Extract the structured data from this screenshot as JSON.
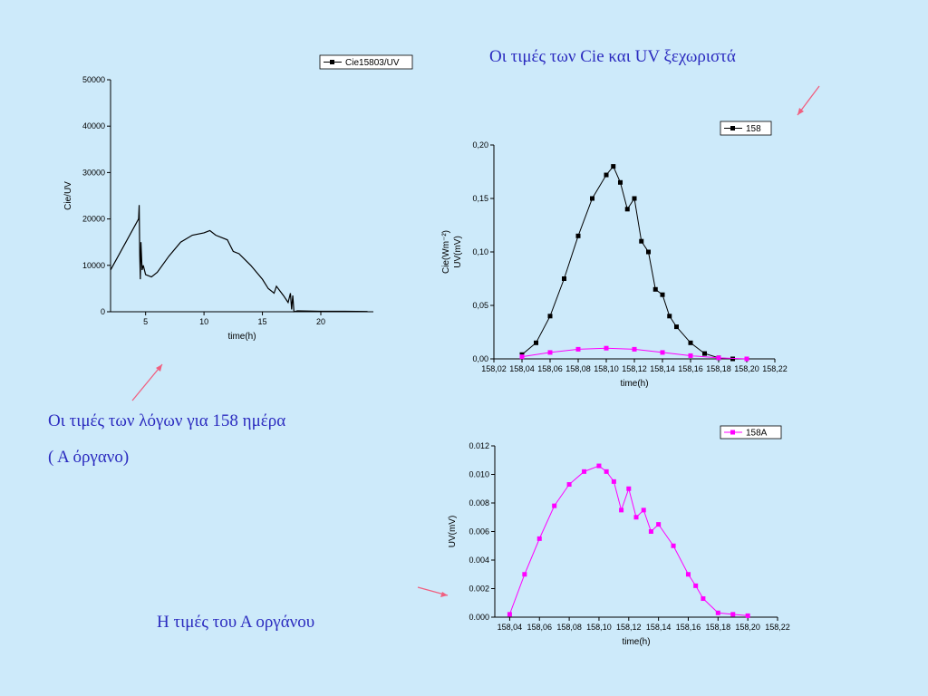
{
  "captions": {
    "top_right": "Οι τιμές των Cie και UV ξεχωριστά",
    "left_1": "Οι τιμές των λόγων για 158 ημέρα",
    "left_2": "( Α όργανο)",
    "bottom": "Η τιμές του Α οργάνου"
  },
  "colors": {
    "background": "#cdeafa",
    "caption": "#2b2bbf",
    "arrow": "#f06080",
    "magenta": "#ff00ff",
    "black": "#000000"
  },
  "chart_data": [
    {
      "id": "ratio",
      "type": "line",
      "legend": "Cie15803/UV",
      "xlabel": "time(h)",
      "ylabel": "Cie/UV",
      "xlim": [
        2,
        24.5
      ],
      "ylim": [
        0,
        50000
      ],
      "xticks": [
        "5",
        "10",
        "15",
        "20"
      ],
      "yticks": [
        "0",
        "10000",
        "20000",
        "30000",
        "40000",
        "50000"
      ],
      "series": [
        {
          "legend_label": "Cie15803/UV",
          "color": "#000000",
          "x": [
            2.0,
            4.4,
            4.45,
            4.5,
            4.55,
            4.6,
            4.7,
            4.8,
            5.0,
            5.5,
            6.0,
            7.0,
            8.0,
            9.0,
            10.0,
            10.5,
            11.0,
            12.0,
            12.5,
            13.0,
            14.0,
            15.0,
            15.5,
            16.0,
            16.2,
            16.8,
            17.2,
            17.4,
            17.5,
            17.6,
            17.7,
            18.0,
            20.0,
            22.0,
            24.0
          ],
          "y": [
            9000,
            20000,
            23000,
            12000,
            7000,
            15000,
            9000,
            10000,
            8000,
            7500,
            8500,
            12000,
            15000,
            16500,
            17000,
            17500,
            16500,
            15500,
            13000,
            12500,
            10000,
            7000,
            5000,
            4000,
            5500,
            3500,
            2000,
            4000,
            500,
            3500,
            0,
            200,
            100,
            100,
            50
          ]
        }
      ]
    },
    {
      "id": "cie_uv",
      "type": "scatter",
      "legend": "158",
      "xlabel": "time(h)",
      "ylabel": "Cie(Wm⁻²)\nUV(mV)",
      "xlim": [
        158.02,
        158.22
      ],
      "ylim": [
        0,
        0.2
      ],
      "xticks": [
        "158,02",
        "158,04",
        "158,06",
        "158,08",
        "158,10",
        "158,12",
        "158,14",
        "158,16",
        "158,18",
        "158,20",
        "158,22"
      ],
      "yticks": [
        "0,00",
        "0,05",
        "0,10",
        "0,15",
        "0,20"
      ],
      "series": [
        {
          "legend_label": "158",
          "color": "#000000",
          "x": [
            158.04,
            158.05,
            158.06,
            158.07,
            158.08,
            158.09,
            158.1,
            158.105,
            158.11,
            158.115,
            158.12,
            158.125,
            158.13,
            158.135,
            158.14,
            158.145,
            158.15,
            158.16,
            158.17,
            158.18,
            158.19,
            158.2
          ],
          "y": [
            0.004,
            0.015,
            0.04,
            0.075,
            0.115,
            0.15,
            0.172,
            0.18,
            0.165,
            0.14,
            0.15,
            0.11,
            0.1,
            0.065,
            0.06,
            0.04,
            0.03,
            0.015,
            0.005,
            0.001,
            0.0,
            0.0
          ]
        },
        {
          "color": "#ff00ff",
          "x": [
            158.04,
            158.06,
            158.08,
            158.1,
            158.12,
            158.14,
            158.16,
            158.18,
            158.2
          ],
          "y": [
            0.002,
            0.006,
            0.009,
            0.01,
            0.009,
            0.006,
            0.003,
            0.001,
            0.0
          ]
        }
      ]
    },
    {
      "id": "uv_only",
      "type": "scatter",
      "legend": "158A",
      "xlabel": "time(h)",
      "ylabel": "UV(mV)",
      "xlim": [
        158.03,
        158.22
      ],
      "ylim": [
        0,
        0.012
      ],
      "xticks": [
        "158,04",
        "158,06",
        "158,08",
        "158,10",
        "158,12",
        "158,14",
        "158,16",
        "158,18",
        "158,20",
        "158,22"
      ],
      "yticks": [
        "0.000",
        "0.002",
        "0.004",
        "0.006",
        "0.008",
        "0.010",
        "0.012"
      ],
      "series": [
        {
          "legend_label": "158A",
          "color": "#ff00ff",
          "x": [
            158.04,
            158.05,
            158.06,
            158.07,
            158.08,
            158.09,
            158.1,
            158.105,
            158.11,
            158.115,
            158.12,
            158.125,
            158.13,
            158.135,
            158.14,
            158.15,
            158.16,
            158.165,
            158.17,
            158.18,
            158.19,
            158.2
          ],
          "y": [
            0.0002,
            0.003,
            0.0055,
            0.0078,
            0.0093,
            0.0102,
            0.0106,
            0.0102,
            0.0095,
            0.0075,
            0.009,
            0.007,
            0.0075,
            0.006,
            0.0065,
            0.005,
            0.003,
            0.0022,
            0.0013,
            0.0003,
            0.0002,
            0.0001
          ]
        }
      ]
    }
  ]
}
